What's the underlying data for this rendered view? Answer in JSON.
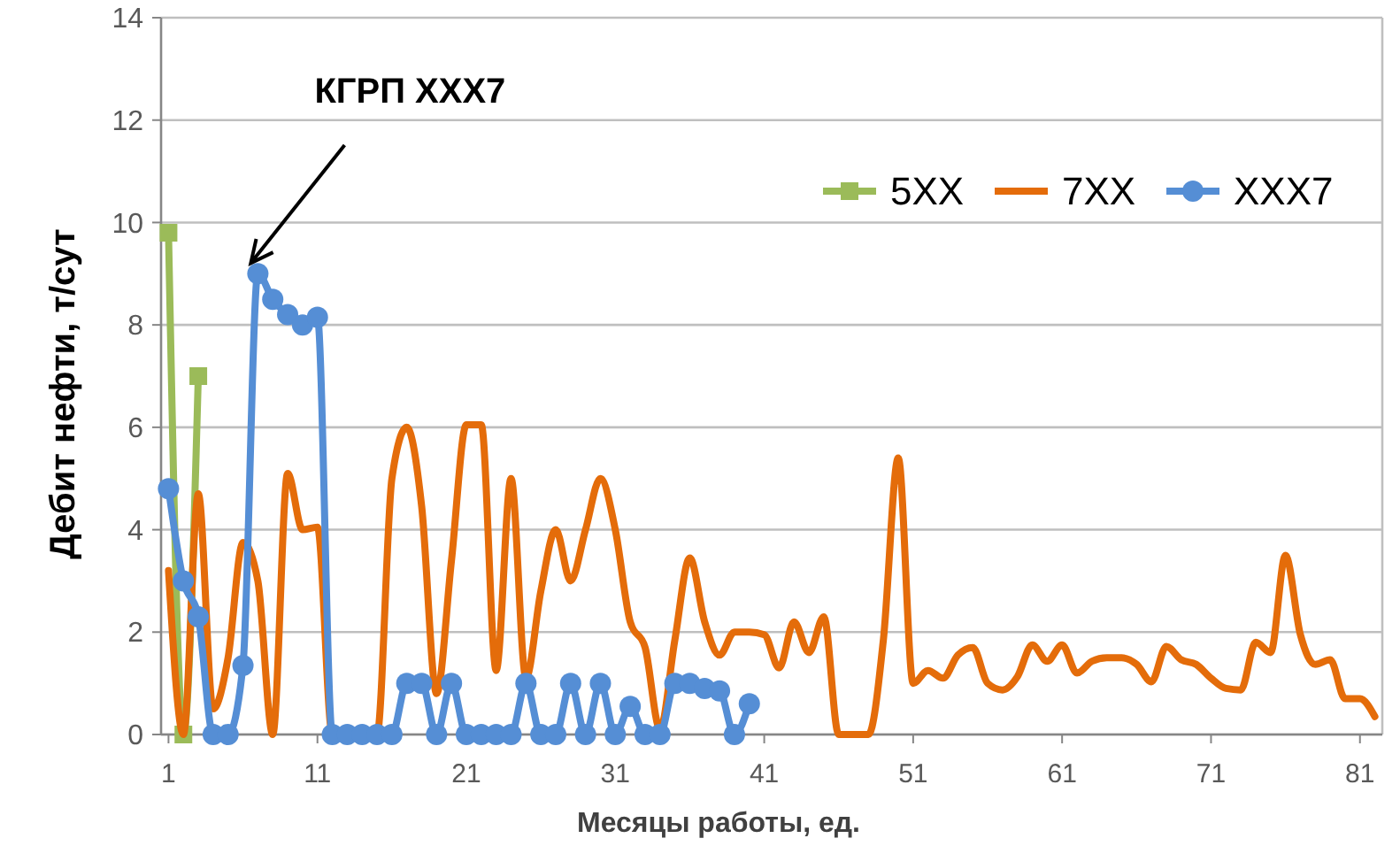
{
  "chart_data": {
    "type": "line",
    "xlabel": "Месяцы работы, ед.",
    "ylabel": "Дебит нефти, т/сут",
    "x": [
      1,
      2,
      3,
      4,
      5,
      6,
      7,
      8,
      9,
      10,
      11,
      12,
      13,
      14,
      15,
      16,
      17,
      18,
      19,
      20,
      21,
      22,
      23,
      24,
      25,
      26,
      27,
      28,
      29,
      30,
      31,
      32,
      33,
      34,
      35,
      36,
      37,
      38,
      39,
      40,
      41,
      42,
      43,
      44,
      45,
      46,
      47,
      48,
      49,
      50,
      51,
      52,
      53,
      54,
      55,
      56,
      57,
      58,
      59,
      60,
      61,
      62,
      63,
      64,
      65,
      66,
      67,
      68,
      69,
      70,
      71,
      72,
      73,
      74,
      75,
      76,
      77,
      78,
      79,
      80,
      81,
      82
    ],
    "xlim": [
      0.5,
      82.5
    ],
    "xticks": [
      1,
      11,
      21,
      31,
      41,
      51,
      61,
      71,
      81
    ],
    "ylim": [
      0,
      14
    ],
    "yticks": [
      0,
      2,
      4,
      6,
      8,
      10,
      12,
      14
    ],
    "grid": "y",
    "legend": "top right",
    "series": [
      {
        "name": "5XX",
        "color": "#9bbb59",
        "marker": "square",
        "x": [
          1,
          2,
          3
        ],
        "values": [
          9.8,
          0,
          7.0
        ]
      },
      {
        "name": "7XX",
        "color": "#e46c0a",
        "marker": "none",
        "values": [
          3.2,
          0,
          4.7,
          0.5,
          1.5,
          3.75,
          3.0,
          0,
          5.1,
          4.0,
          4.05,
          0,
          0,
          0,
          0,
          5.0,
          6.0,
          4.45,
          0.8,
          3.4,
          6.05,
          6.05,
          1.25,
          5.0,
          1.1,
          2.8,
          4.0,
          3.0,
          4.0,
          5.0,
          4.0,
          2.2,
          1.7,
          0.1,
          1.85,
          3.45,
          2.2,
          1.55,
          2.0,
          2.0,
          1.95,
          1.3,
          2.2,
          1.6,
          2.3,
          0,
          0,
          0,
          1.85,
          5.4,
          1.0,
          1.25,
          1.1,
          1.55,
          1.7,
          1.0,
          0.87,
          1.13,
          1.75,
          1.43,
          1.75,
          1.2,
          1.43,
          1.5,
          1.5,
          1.37,
          1.03,
          1.72,
          1.46,
          1.37,
          1.1,
          0.9,
          0.87,
          1.8,
          1.6,
          3.5,
          1.95,
          1.37,
          1.46,
          0.7,
          0.7,
          0.35
        ]
      },
      {
        "name": "XXX7",
        "color": "#558ed5",
        "marker": "circle",
        "x": [
          1,
          2,
          3,
          4,
          5,
          6,
          7,
          8,
          9,
          10,
          11,
          12,
          13,
          14,
          15,
          16,
          17,
          18,
          19,
          20,
          21,
          22,
          23,
          24,
          25,
          26,
          27,
          28,
          29,
          30,
          31,
          32,
          33,
          34,
          35,
          36,
          37,
          38,
          39,
          40
        ],
        "values": [
          4.8,
          3.0,
          2.3,
          0,
          0,
          1.35,
          9.0,
          8.5,
          8.2,
          8.0,
          8.15,
          0,
          0,
          0,
          0,
          0,
          1.0,
          1.0,
          0,
          1.0,
          0,
          0,
          0,
          0,
          1.0,
          0,
          0,
          1.0,
          0,
          1.0,
          0,
          0.55,
          0,
          0,
          1.0,
          1.0,
          0.9,
          0.85,
          0,
          0.6
        ]
      }
    ],
    "annotations": [
      {
        "text": "КГРП XXX7",
        "x": 7,
        "y": 9.0
      }
    ]
  }
}
